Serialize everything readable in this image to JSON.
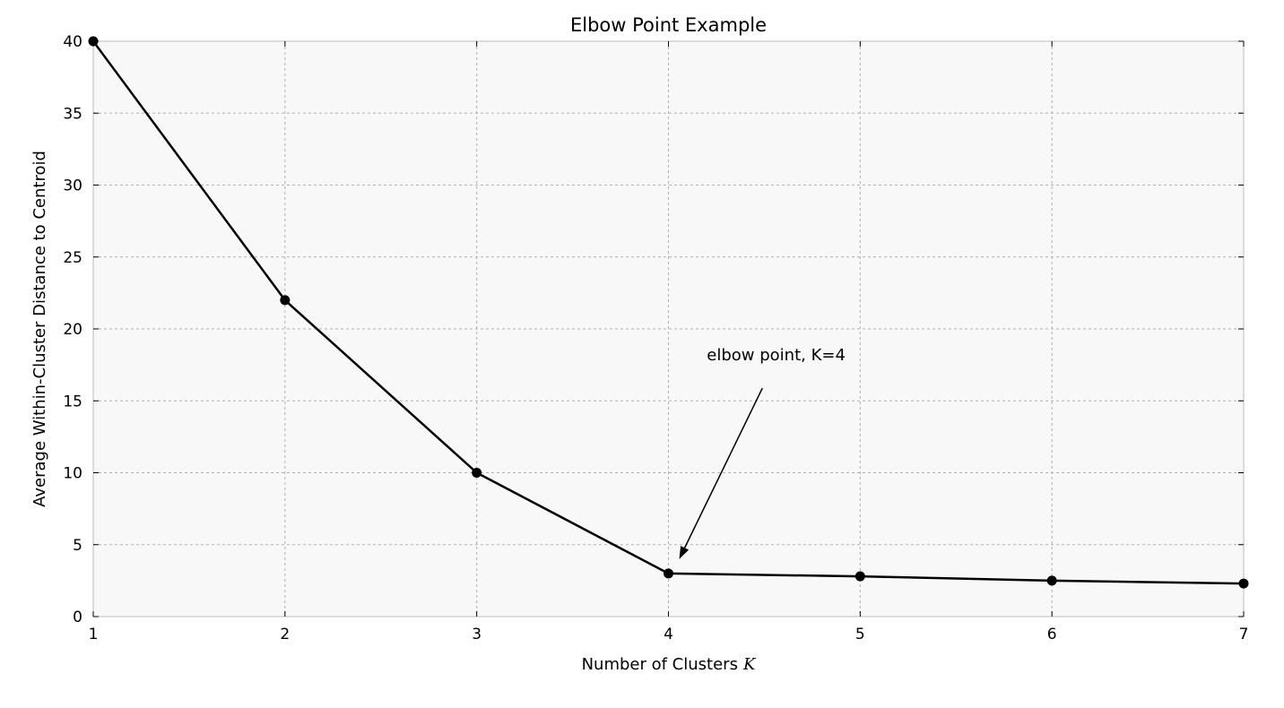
{
  "chart_data": {
    "type": "line",
    "title": "Elbow Point Example",
    "xlabel": "Number of Clusters",
    "xlabel_var": "K",
    "ylabel": "Average Within-Cluster Distance to Centroid",
    "x": [
      1,
      2,
      3,
      4,
      5,
      6,
      7
    ],
    "series": [
      {
        "values": [
          40,
          22,
          10,
          3,
          2.8,
          2.5,
          2.3
        ]
      }
    ],
    "xlim": [
      1,
      7
    ],
    "ylim": [
      0,
      40
    ],
    "xticks": [
      1,
      2,
      3,
      4,
      5,
      6,
      7
    ],
    "yticks": [
      0,
      5,
      10,
      15,
      20,
      25,
      30,
      35,
      40
    ],
    "grid": true,
    "annotation": {
      "text": "elbow point, K=4",
      "point_x": 4,
      "point_y": 3,
      "text_x": 4.2,
      "text_y": 18
    },
    "colors": {
      "line": "#000000",
      "marker": "#000000",
      "plot_background": "#f8f8f8",
      "grid": "#b0b0b0",
      "frame": "#bbbbbb"
    }
  }
}
